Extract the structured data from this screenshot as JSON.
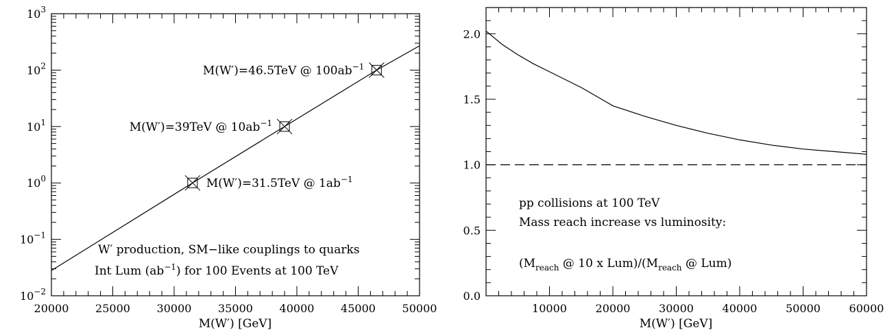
{
  "chart_data": [
    {
      "type": "line",
      "yscale": "log",
      "xlim": [
        20000,
        50000
      ],
      "ylim": [
        0.01,
        1000
      ],
      "xlabel": "M(W′) [GeV]",
      "ylabel": "",
      "x_ticks": [
        "20000",
        "25000",
        "30000",
        "35000",
        "40000",
        "45000",
        "50000"
      ],
      "y_tick_exponents": [
        "−2",
        "−1",
        "0",
        "1",
        "2",
        "3"
      ],
      "y_tick_base": "10",
      "series": [
        {
          "x": [
            20000,
            31500,
            39000,
            46500,
            50000
          ],
          "y": [
            0.028,
            1,
            10,
            100,
            270
          ]
        }
      ],
      "markers": [
        {
          "x": 31500,
          "y": 1,
          "text": "M(W′)=31.5TeV @ 1ab",
          "sup": "−1"
        },
        {
          "x": 39000,
          "y": 10,
          "text": "M(W′)=39TeV @ 10ab",
          "sup": "−1"
        },
        {
          "x": 46500,
          "y": 100,
          "text": "M(W′)=46.5TeV @ 100ab",
          "sup": "−1"
        }
      ],
      "annotations": {
        "line1": "W′ production, SM−like couplings to quarks",
        "line2_pre": "Int Lum (ab",
        "line2_sup": "−1",
        "line2_post": ") for 100 Events at 100 TeV"
      }
    },
    {
      "type": "line",
      "xlim": [
        0,
        60000
      ],
      "ylim": [
        0,
        2.2
      ],
      "xlabel": "M(W′) [GeV]",
      "ylabel": "",
      "x_ticks": [
        "10000",
        "20000",
        "30000",
        "40000",
        "50000",
        "60000"
      ],
      "y_ticks": [
        "0.0",
        "0.5",
        "1.0",
        "1.5",
        "2.0"
      ],
      "series": [
        {
          "x": [
            0,
            1000,
            2500,
            5000,
            7500,
            10000,
            15000,
            20000,
            25000,
            30000,
            35000,
            40000,
            45000,
            50000,
            55000,
            60000
          ],
          "y": [
            2.02,
            1.98,
            1.92,
            1.84,
            1.77,
            1.71,
            1.59,
            1.45,
            1.37,
            1.3,
            1.24,
            1.19,
            1.15,
            1.12,
            1.1,
            1.08
          ]
        }
      ],
      "reference_line": {
        "y": 1.0,
        "style": "dashed"
      },
      "annotations": {
        "line1": "pp collisions at 100 TeV",
        "line2": "Mass reach increase vs luminosity:",
        "line3_a": "(M",
        "line3_sub": "reach",
        "line3_b": " @ 10 x Lum)/(M",
        "line3_sub2": "reach",
        "line3_c": " @ Lum)"
      }
    }
  ]
}
